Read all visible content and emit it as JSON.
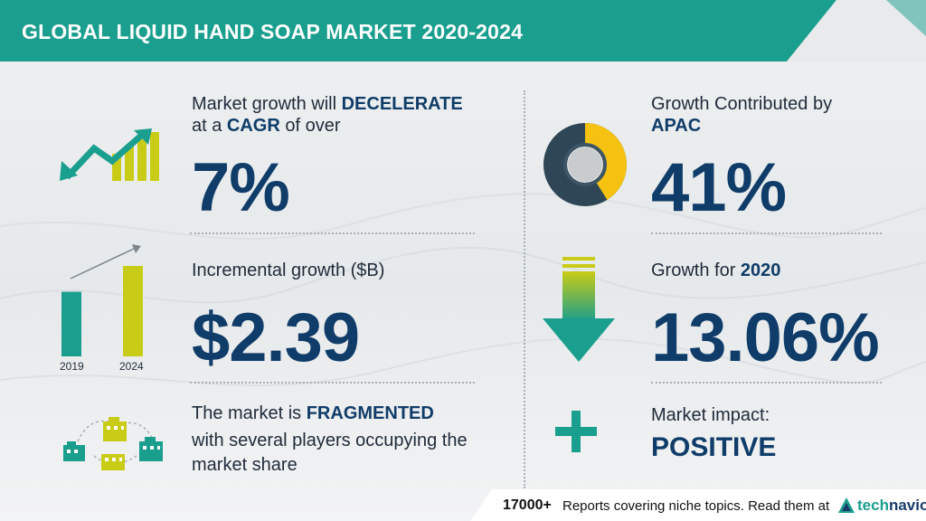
{
  "header": {
    "title": "GLOBAL LIQUID HAND SOAP MARKET 2020-2024"
  },
  "growth": {
    "line1_prefix": "Market growth will",
    "line1_bold": "DECELERATE",
    "line2_prefix": "at a",
    "line2_bold": "CAGR",
    "line2_suffix": "of over",
    "value": "7%"
  },
  "incremental": {
    "label": "Incremental growth ($B)",
    "value": "$2.39",
    "chart": {
      "years": [
        "2019",
        "2024"
      ],
      "values": [
        45,
        63
      ],
      "colors": [
        "#1a9e8e",
        "#c9cc16"
      ]
    }
  },
  "fragmented": {
    "line1_prefix": "The market is",
    "line1_bold": "FRAGMENTED",
    "line2": "with several players occupying the",
    "line3": "market share"
  },
  "apac": {
    "line1": "Growth Contributed by",
    "line2_bold": "APAC",
    "value": "41%",
    "donut": {
      "share": 41,
      "highlight_color": "#f5c211",
      "base_color": "#2f4656"
    }
  },
  "growth2020": {
    "label_prefix": "Growth for",
    "label_bold": "2020",
    "value": "13.06%"
  },
  "impact": {
    "label": "Market impact:",
    "value": "POSITIVE"
  },
  "footer": {
    "count": "17000+",
    "text": "Reports covering niche topics. Read them at",
    "logo": "technavio"
  },
  "colors": {
    "teal": "#1a9e8e",
    "navy": "#0f3c68",
    "yellow": "#c9cc16"
  }
}
